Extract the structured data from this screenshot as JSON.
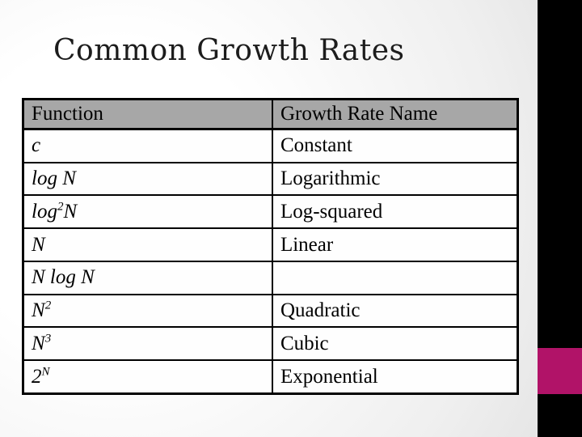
{
  "title": "Common Growth Rates",
  "colors": {
    "slide-bg-start": "#ffffff",
    "slide-bg-end": "#e2e2e2",
    "sidebar": "#000000",
    "accent": "#b11368",
    "header-bg": "#a7a7a7",
    "table-border": "#000000",
    "title-text": "#1c1c1c",
    "cell-text": "#000000"
  },
  "table": {
    "headers": [
      "Function",
      "Growth Rate Name"
    ],
    "rows": [
      {
        "function": [
          {
            "t": "c"
          }
        ],
        "name": "Constant"
      },
      {
        "function": [
          {
            "t": "log N"
          }
        ],
        "name": "Logarithmic"
      },
      {
        "function": [
          {
            "t": "log"
          },
          {
            "t": "2",
            "sup": true
          },
          {
            "t": "N"
          }
        ],
        "name": "Log-squared"
      },
      {
        "function": [
          {
            "t": "N"
          }
        ],
        "name": "Linear"
      },
      {
        "function": [
          {
            "t": "N log N"
          }
        ],
        "name": ""
      },
      {
        "function": [
          {
            "t": "N"
          },
          {
            "t": "2",
            "sup": true
          }
        ],
        "name": "Quadratic"
      },
      {
        "function": [
          {
            "t": "N"
          },
          {
            "t": "3",
            "sup": true
          }
        ],
        "name": "Cubic"
      },
      {
        "function": [
          {
            "t": "2"
          },
          {
            "t": "N",
            "sup": true
          }
        ],
        "name": "Exponential"
      }
    ]
  }
}
